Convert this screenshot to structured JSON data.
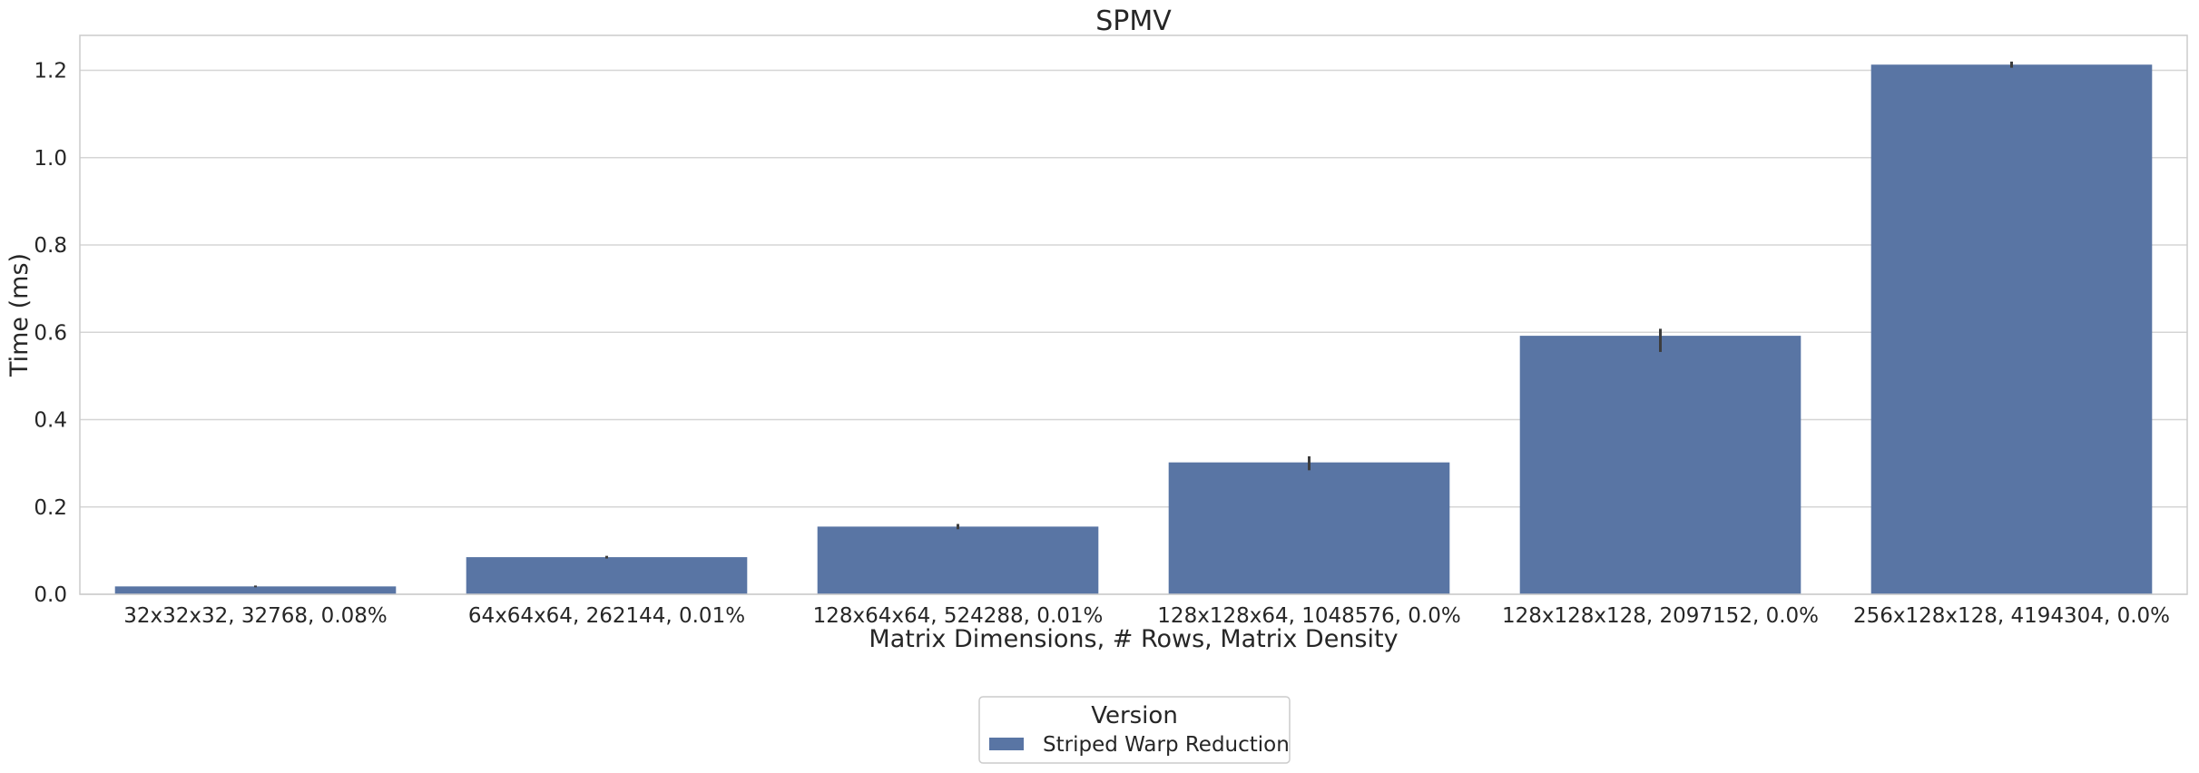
{
  "chart_data": {
    "type": "bar",
    "title": "SPMV",
    "xlabel": "Matrix Dimensions, # Rows, Matrix Density",
    "ylabel": "Time (ms)",
    "categories": [
      "32x32x32, 32768, 0.08%",
      "64x64x64, 262144, 0.01%",
      "128x64x64, 524288, 0.01%",
      "128x128x64, 1048576, 0.0%",
      "128x128x128, 2097152, 0.0%",
      "256x128x128, 4194304, 0.0%"
    ],
    "series": [
      {
        "name": "Striped Warp Reduction",
        "color": "#5975a4",
        "values": [
          0.018,
          0.085,
          0.155,
          0.302,
          0.592,
          1.213
        ],
        "error_low": [
          0.016,
          0.082,
          0.149,
          0.284,
          0.555,
          1.206
        ],
        "error_high": [
          0.02,
          0.088,
          0.161,
          0.316,
          0.608,
          1.22
        ]
      }
    ],
    "ylim": [
      0,
      1.28
    ],
    "yticks": [
      0.0,
      0.2,
      0.4,
      0.6,
      0.8,
      1.0,
      1.2
    ],
    "ytick_labels": [
      "0.0",
      "0.2",
      "0.4",
      "0.6",
      "0.8",
      "1.0",
      "1.2"
    ],
    "grid": true,
    "legend": {
      "title": "Version",
      "placement": "bottom-center"
    }
  }
}
